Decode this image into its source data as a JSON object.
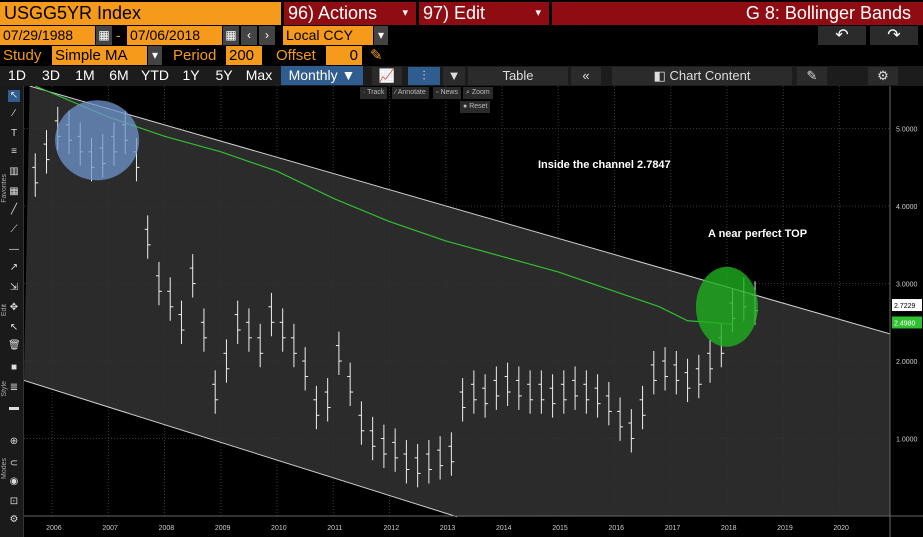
{
  "header": {
    "ticker": "USGG5YR Index",
    "actions": "96) Actions",
    "edit": "97) Edit",
    "chart_name": "G 8: Bollinger Bands"
  },
  "dates": {
    "start": "07/29/1988",
    "separator": "-",
    "end": "07/06/2018",
    "currency": "Local CCY"
  },
  "study": {
    "label": "Study",
    "value": "Simple MA",
    "period_label": "Period",
    "period_value": "200",
    "offset_label": "Offset",
    "offset_value": "0"
  },
  "ranges": [
    "1D",
    "3D",
    "1M",
    "6M",
    "YTD",
    "1Y",
    "5Y",
    "Max"
  ],
  "frequency": "Monthly",
  "toolbar": {
    "table": "Table",
    "chart_content": "Chart Content"
  },
  "minitoolbar": {
    "track": "Track",
    "annotate": "Annotate",
    "news": "News",
    "zoom": "Zoom",
    "reset": "Reset"
  },
  "sidebar_labels": [
    "Favorites",
    "Edit",
    "Style",
    "Modes"
  ],
  "annotations": {
    "channel": "Inside the channel 2.7847",
    "top": "A near perfect TOP"
  },
  "colors": {
    "orange": "#f59a1b",
    "red": "#8e0c12",
    "ma": "#2fbf2f",
    "circle_blue": "#6f96cf",
    "circle_green": "#1fae1f"
  },
  "chart_data": {
    "type": "bar",
    "x_tick_labels": [
      "2006",
      "2007",
      "2008",
      "2009",
      "2010",
      "2011",
      "2012",
      "2013",
      "2014",
      "2015",
      "2016",
      "2017",
      "2018",
      "2019",
      "2020"
    ],
    "y_tick_labels": [
      "1.0000",
      "2.0000",
      "3.0000",
      "4.0000",
      "5.0000"
    ],
    "ylim": [
      0.0,
      5.55
    ],
    "last_price_label": "2.7229",
    "ma_label": "2.4980",
    "series": [
      {
        "name": "",
        "x": [
          2005.7,
          2005.9,
          2006.1,
          2006.3,
          2006.5,
          2006.7,
          2006.9,
          2007.1,
          2007.3,
          2007.5,
          2007.7,
          2007.9,
          2008.1,
          2008.3,
          2008.5,
          2008.7,
          2008.9,
          2009.1,
          2009.3,
          2009.5,
          2009.7,
          2009.9,
          2010.1,
          2010.3,
          2010.5,
          2010.7,
          2010.9,
          2011.1,
          2011.3,
          2011.5,
          2011.7,
          2011.9,
          2012.1,
          2012.3,
          2012.5,
          2012.7,
          2012.9,
          2013.1,
          2013.3,
          2013.5,
          2013.7,
          2013.9,
          2014.1,
          2014.3,
          2014.5,
          2014.7,
          2014.9,
          2015.1,
          2015.3,
          2015.5,
          2015.7,
          2015.9,
          2016.1,
          2016.3,
          2016.5,
          2016.7,
          2016.9,
          2017.1,
          2017.3,
          2017.5,
          2017.7,
          2017.9,
          2018.1,
          2018.3,
          2018.5
        ],
        "y": [
          4.4,
          4.7,
          5.0,
          4.95,
          4.8,
          4.6,
          4.65,
          4.8,
          4.95,
          4.6,
          3.6,
          3.0,
          2.8,
          2.5,
          3.1,
          2.4,
          1.6,
          2.0,
          2.5,
          2.4,
          2.2,
          2.6,
          2.4,
          2.2,
          1.9,
          1.4,
          1.5,
          2.1,
          1.7,
          1.2,
          1.0,
          0.9,
          0.85,
          0.7,
          0.65,
          0.7,
          0.75,
          0.8,
          1.5,
          1.6,
          1.55,
          1.65,
          1.7,
          1.65,
          1.6,
          1.6,
          1.55,
          1.6,
          1.65,
          1.6,
          1.55,
          1.45,
          1.25,
          1.1,
          1.4,
          1.85,
          1.9,
          1.85,
          1.75,
          1.8,
          2.0,
          2.2,
          2.65,
          2.8,
          2.75
        ]
      },
      {
        "name": "",
        "x": [
          2005.7,
          2007.0,
          2008.0,
          2009.0,
          2010.0,
          2011.0,
          2012.0,
          2013.0,
          2014.0,
          2015.0,
          2016.0,
          2016.8,
          2017.3,
          2017.7,
          2018.0,
          2018.1
        ],
        "y": [
          5.55,
          5.15,
          4.9,
          4.7,
          4.45,
          4.1,
          3.8,
          3.55,
          3.35,
          3.15,
          2.9,
          2.7,
          2.52,
          2.5,
          2.48,
          2.48
        ]
      }
    ]
  }
}
